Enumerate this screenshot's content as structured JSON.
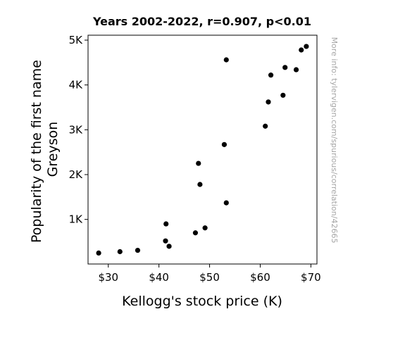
{
  "chart_data": {
    "type": "scatter",
    "title": "Years 2002-2022, r=0.907, p<0.01",
    "xlabel": "Kellogg's stock price (K)",
    "ylabel_lines": [
      "Popularity of the first name",
      "Greyson"
    ],
    "xlim": [
      26.0,
      71.2
    ],
    "ylim": [
      5,
      5110
    ],
    "x_ticks": [
      30,
      40,
      50,
      60,
      70
    ],
    "x_tick_labels": [
      "$30",
      "$40",
      "$50",
      "$60",
      "$70"
    ],
    "y_ticks": [
      1000,
      2000,
      3000,
      4000,
      5000
    ],
    "y_tick_labels": [
      "1K",
      "2K",
      "3K",
      "4K",
      "5K"
    ],
    "grid": false,
    "marker_color": "#000000",
    "watermark": "More info: tylervigen.com/spurious/correlation/42665",
    "points": [
      {
        "x": 28.1,
        "y": 250
      },
      {
        "x": 32.3,
        "y": 280
      },
      {
        "x": 35.8,
        "y": 310
      },
      {
        "x": 41.3,
        "y": 520
      },
      {
        "x": 42.0,
        "y": 400
      },
      {
        "x": 41.4,
        "y": 900
      },
      {
        "x": 47.2,
        "y": 700
      },
      {
        "x": 49.1,
        "y": 810
      },
      {
        "x": 47.8,
        "y": 2250
      },
      {
        "x": 48.1,
        "y": 1780
      },
      {
        "x": 53.3,
        "y": 1370
      },
      {
        "x": 52.9,
        "y": 2670
      },
      {
        "x": 53.3,
        "y": 4560
      },
      {
        "x": 61.0,
        "y": 3080
      },
      {
        "x": 61.6,
        "y": 3620
      },
      {
        "x": 62.1,
        "y": 4220
      },
      {
        "x": 64.5,
        "y": 3770
      },
      {
        "x": 64.9,
        "y": 4390
      },
      {
        "x": 67.1,
        "y": 4340
      },
      {
        "x": 68.1,
        "y": 4780
      },
      {
        "x": 69.1,
        "y": 4860
      }
    ]
  }
}
